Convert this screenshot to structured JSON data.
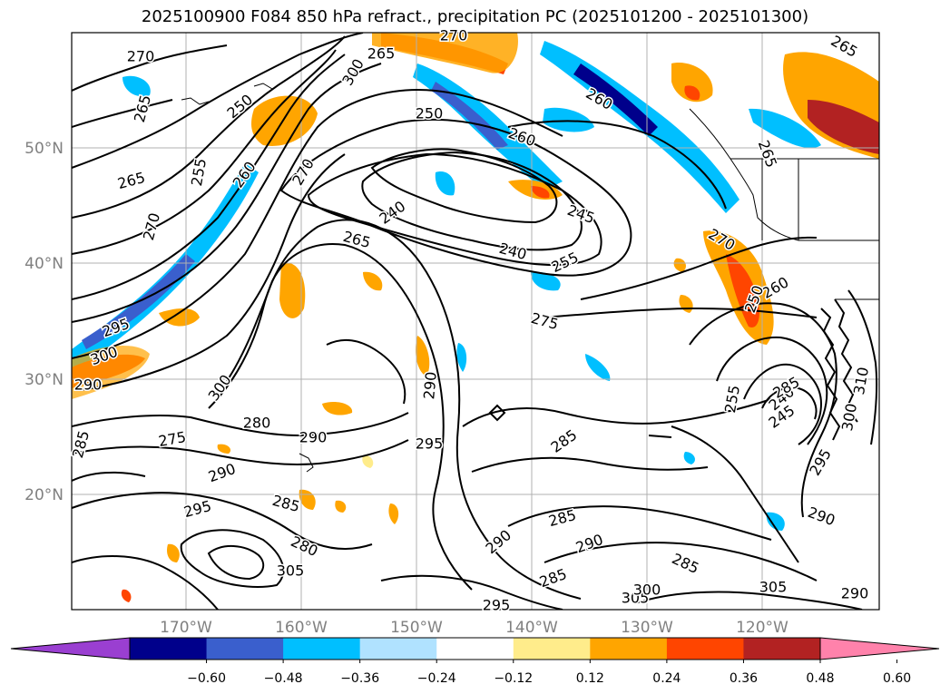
{
  "title": "2025100900 F084 850 hPa refract., precipitation PC (2025101200 - 2025101300)",
  "lat_labels": [
    "50°N",
    "40°N",
    "30°N",
    "20°N"
  ],
  "lon_labels": [
    "170°W",
    "160°W",
    "150°W",
    "140°W",
    "130°W",
    "120°W"
  ],
  "colorbar": {
    "ticks": [
      "−0.60",
      "−0.48",
      "−0.36",
      "−0.24",
      "−0.12",
      "0.12",
      "0.24",
      "0.36",
      "0.48",
      "0.60"
    ],
    "colors": [
      "#9a3fd1",
      "#00008b",
      "#3a5fcd",
      "#00bfff",
      "#b0e2ff",
      "#ffffff",
      "#ffec8b",
      "#ffa500",
      "#ff4500",
      "#b22222",
      "#ff82ab"
    ]
  },
  "contour_labels": [
    {
      "text": "270"
    },
    {
      "text": "265"
    },
    {
      "text": "250"
    },
    {
      "text": "255"
    },
    {
      "text": "260"
    },
    {
      "text": "270"
    },
    {
      "text": "265"
    },
    {
      "text": "270"
    },
    {
      "text": "250"
    },
    {
      "text": "260"
    },
    {
      "text": "240"
    },
    {
      "text": "265"
    },
    {
      "text": "240"
    },
    {
      "text": "245"
    },
    {
      "text": "255"
    },
    {
      "text": "275"
    },
    {
      "text": "260"
    },
    {
      "text": "265"
    },
    {
      "text": "265"
    },
    {
      "text": "270"
    },
    {
      "text": "260"
    },
    {
      "text": "250"
    },
    {
      "text": "295"
    },
    {
      "text": "300"
    },
    {
      "text": "290"
    },
    {
      "text": "300"
    },
    {
      "text": "290"
    },
    {
      "text": "280"
    },
    {
      "text": "275"
    },
    {
      "text": "290"
    },
    {
      "text": "295"
    },
    {
      "text": "285"
    },
    {
      "text": "290"
    },
    {
      "text": "295"
    },
    {
      "text": "285"
    },
    {
      "text": "280"
    },
    {
      "text": "305"
    },
    {
      "text": "285"
    },
    {
      "text": "290"
    },
    {
      "text": "285"
    },
    {
      "text": "290"
    },
    {
      "text": "285"
    },
    {
      "text": "295"
    },
    {
      "text": "305"
    },
    {
      "text": "300"
    },
    {
      "text": "285"
    },
    {
      "text": "240"
    },
    {
      "text": "245"
    },
    {
      "text": "255"
    },
    {
      "text": "295"
    },
    {
      "text": "290"
    },
    {
      "text": "305"
    },
    {
      "text": "290"
    },
    {
      "text": "300"
    },
    {
      "text": "310"
    },
    {
      "text": "285"
    },
    {
      "text": "300"
    },
    {
      "text": "265"
    },
    {
      "text": "270"
    }
  ]
}
